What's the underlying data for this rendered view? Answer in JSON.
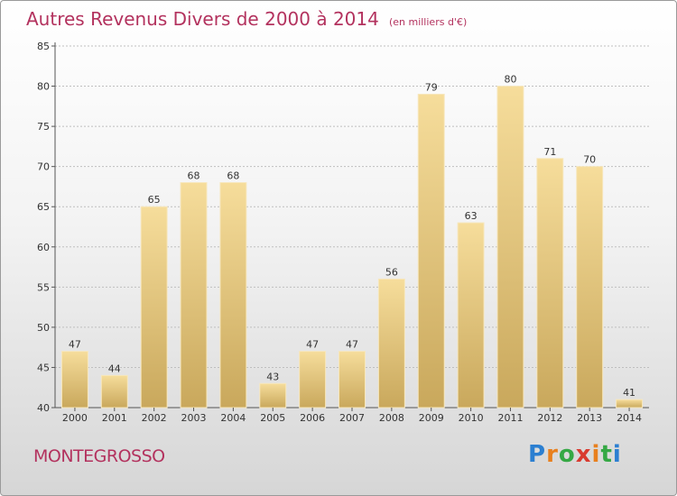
{
  "title": "Autres Revenus Divers de 2000 à 2014",
  "subtitle": "(en milliers d'€)",
  "location": "MONTEGROSSO",
  "logo": {
    "letters": [
      "P",
      "r",
      "o",
      "x",
      "i",
      "t",
      "i"
    ],
    "colors": [
      "#2b7fd1",
      "#e8801e",
      "#35a844",
      "#d93a2f",
      "#e8801e",
      "#35a844",
      "#2b7fd1"
    ]
  },
  "chart_data": {
    "type": "bar",
    "categories": [
      "2000",
      "2001",
      "2002",
      "2003",
      "2004",
      "2005",
      "2006",
      "2007",
      "2008",
      "2009",
      "2010",
      "2011",
      "2012",
      "2013",
      "2014"
    ],
    "values": [
      47,
      44,
      65,
      68,
      68,
      43,
      47,
      47,
      56,
      79,
      63,
      80,
      71,
      70,
      41
    ],
    "ylim": [
      40,
      85
    ],
    "yticks": [
      40,
      45,
      50,
      55,
      60,
      65,
      70,
      75,
      80,
      85
    ],
    "grid": true,
    "title": "Autres Revenus Divers de 2000 à 2014",
    "subtitle": "(en milliers d'€)",
    "xlabel": "",
    "ylabel": "",
    "colors": {
      "bar_light": "#f6dd9b",
      "bar_dark": "#c9a85c"
    }
  }
}
